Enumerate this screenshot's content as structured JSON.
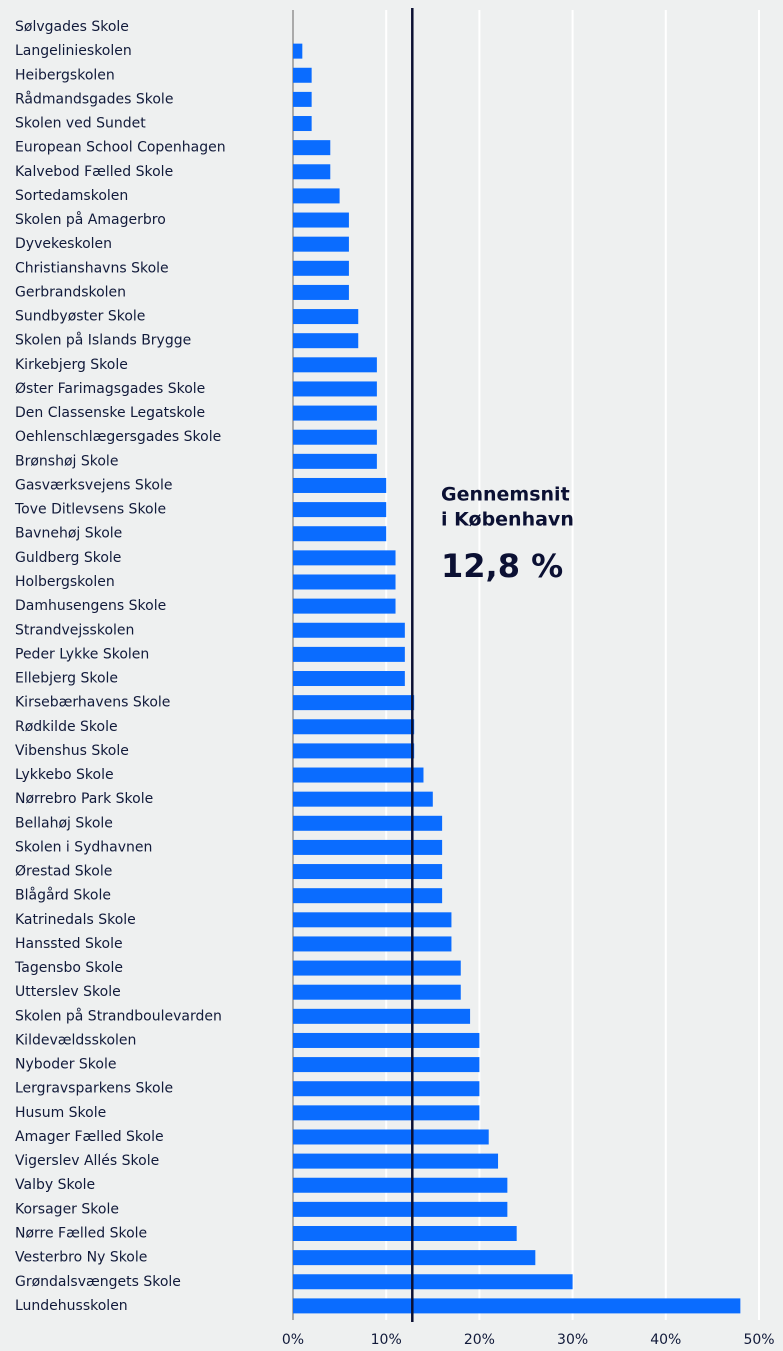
{
  "chart_data": {
    "type": "barh",
    "categories": [
      "Sølvgades Skole",
      "Langelinieskolen",
      "Heibergskolen",
      "Rådmandsgades Skole",
      "Skolen ved Sundet",
      "European School Copenhagen",
      "Kalvebod Fælled Skole",
      "Sortedamskolen",
      "Skolen på Amagerbro",
      "Dyvekeskolen",
      "Christianshavns Skole",
      "Gerbrandskolen",
      "Sundbyøster Skole",
      "Skolen på Islands Brygge",
      "Kirkebjerg Skole",
      "Øster Farimagsgades Skole",
      "Den Classenske Legatskole",
      "Oehlenschlægersgades Skole",
      "Brønshøj Skole",
      "Gasværksvejens Skole",
      "Tove Ditlevsens Skole",
      "Bavnehøj Skole",
      "Guldberg Skole",
      "Holbergskolen",
      "Damhusengens Skole",
      "Strandvejsskolen",
      "Peder Lykke Skolen",
      "Ellebjerg Skole",
      "Kirsebærhavens Skole",
      "Rødkilde Skole",
      "Vibenshus Skole",
      "Lykkebo Skole",
      "Nørrebro Park Skole",
      "Bellahøj Skole",
      "Skolen i Sydhavnen",
      "Ørestad Skole",
      "Blågård Skole",
      "Katrinedals Skole",
      "Hanssted Skole",
      "Tagensbo Skole",
      "Utterslev Skole",
      "Skolen på Strandboulevarden",
      "Kildevældsskolen",
      "Nyboder Skole",
      "Lergravsparkens Skole",
      "Husum Skole",
      "Amager Fælled Skole",
      "Vigerslev Allés Skole",
      "Valby Skole",
      "Korsager Skole",
      "Nørre Fælled Skole",
      "Vesterbro Ny Skole",
      "Grøndalsvængets Skole",
      "Lundehusskolen"
    ],
    "values": [
      0,
      1,
      2,
      2,
      2,
      4,
      4,
      5,
      6,
      6,
      6,
      6,
      7,
      7,
      9,
      9,
      9,
      9,
      9,
      10,
      10,
      10,
      11,
      11,
      11,
      12,
      12,
      12,
      13,
      13,
      13,
      14,
      15,
      16,
      16,
      16,
      16,
      17,
      17,
      18,
      18,
      19,
      20,
      20,
      20,
      20,
      21,
      22,
      23,
      23,
      24,
      26,
      30,
      48
    ],
    "color": "#0a6cff",
    "xlim": [
      0,
      50
    ],
    "xticks": [
      {
        "value": 0,
        "label": "0%"
      },
      {
        "value": 10,
        "label": "10%"
      },
      {
        "value": 20,
        "label": "20%"
      },
      {
        "value": 30,
        "label": "30%"
      },
      {
        "value": 40,
        "label": "40%"
      },
      {
        "value": 50,
        "label": "50%"
      }
    ],
    "grid": true,
    "average": {
      "lines": [
        "Gennemsnit",
        "i København"
      ],
      "value": 12.8,
      "label": "12,8 %"
    }
  }
}
